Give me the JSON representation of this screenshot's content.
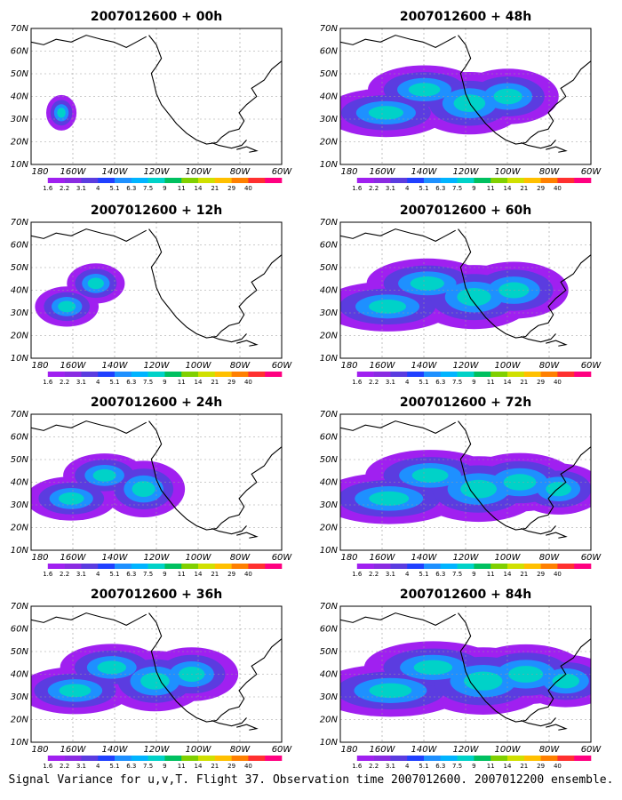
{
  "panels": [
    {
      "title": "2007012600 + 00h",
      "spread": 0.2
    },
    {
      "title": "2007012600 + 12h",
      "spread": 0.42
    },
    {
      "title": "2007012600 + 24h",
      "spread": 0.6
    },
    {
      "title": "2007012600 + 36h",
      "spread": 0.75
    },
    {
      "title": "2007012600 + 48h",
      "spread": 0.82
    },
    {
      "title": "2007012600 + 60h",
      "spread": 0.88
    },
    {
      "title": "2007012600 + 72h",
      "spread": 0.94
    },
    {
      "title": "2007012600 + 84h",
      "spread": 1.0
    }
  ],
  "lat_labels": [
    "70N",
    "60N",
    "50N",
    "40N",
    "30N",
    "20N",
    "10N"
  ],
  "lon_labels": [
    "180",
    "160W",
    "140W",
    "120W",
    "100W",
    "80W",
    "60W"
  ],
  "colorbar": {
    "labels": [
      "1.6",
      "2.2",
      "3.1",
      "4",
      "5.1",
      "6.3",
      "7.5",
      "9",
      "11",
      "14",
      "21",
      "29",
      "40"
    ],
    "colors": [
      "#ffffff",
      "#a020f0",
      "#8a2be2",
      "#5b3ce0",
      "#2040ff",
      "#1e90ff",
      "#00b4ff",
      "#00d2c8",
      "#00c060",
      "#80d000",
      "#d0e000",
      "#ffc000",
      "#ff8000",
      "#ff3030",
      "#ff0080"
    ]
  },
  "caption": "Signal Variance for u,v,T. Flight 37. Observation time 2007012600. 2007012200 ensemble."
}
